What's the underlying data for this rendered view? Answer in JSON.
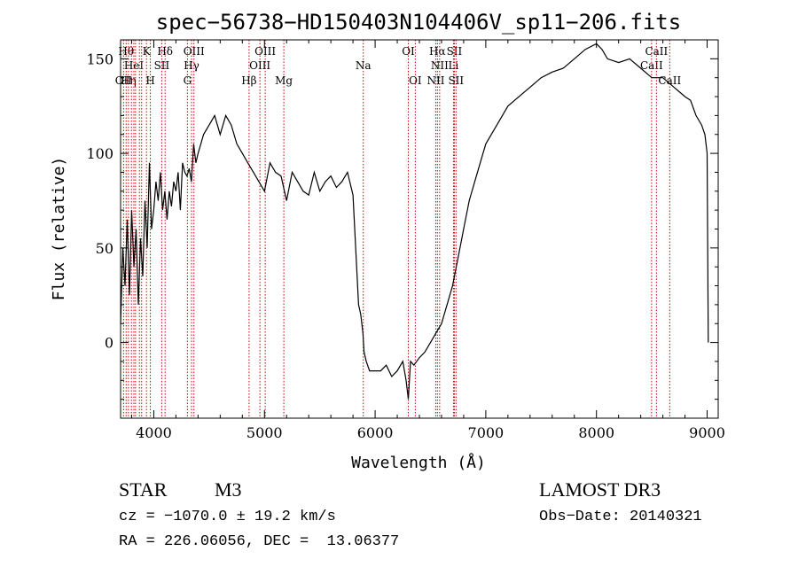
{
  "chart_data": {
    "type": "line",
    "title": "spec−56738−HD150403N104406V_sp11−206.fits",
    "xlabel": "Wavelength (Å)",
    "ylabel": "Flux (relative)",
    "xlim": [
      3700,
      9100
    ],
    "ylim": [
      -40,
      160
    ],
    "x_ticks": [
      4000,
      5000,
      6000,
      7000,
      8000,
      9000
    ],
    "y_ticks": [
      0,
      50,
      100,
      150
    ],
    "grid": false,
    "line_color": "#000000",
    "marker_color": "#cc0000",
    "series": [
      {
        "x": [
          3700,
          3720,
          3740,
          3760,
          3780,
          3800,
          3820,
          3840,
          3860,
          3880,
          3900,
          3920,
          3940,
          3960,
          3980,
          4000,
          4020,
          4040,
          4060,
          4080,
          4100,
          4120,
          4140,
          4160,
          4180,
          4200,
          4220,
          4240,
          4260,
          4280,
          4300,
          4320,
          4340,
          4360,
          4380,
          4400,
          4450,
          4500,
          4550,
          4600,
          4650,
          4700,
          4750,
          4800,
          4850,
          4900,
          4950,
          5000,
          5050,
          5100,
          5150,
          5200,
          5250,
          5300,
          5350,
          5400,
          5450,
          5500,
          5550,
          5600,
          5650,
          5700,
          5750,
          5800,
          5850,
          5870,
          5890,
          5900,
          5920,
          5950,
          6000,
          6050,
          6100,
          6150,
          6200,
          6250,
          6280,
          6300,
          6320,
          6350,
          6400,
          6450,
          6500,
          6550,
          6600,
          6650,
          6700,
          6750,
          6800,
          6850,
          6900,
          6950,
          7000,
          7050,
          7100,
          7150,
          7200,
          7300,
          7400,
          7500,
          7600,
          7700,
          7800,
          7900,
          8000,
          8050,
          8100,
          8200,
          8300,
          8400,
          8500,
          8600,
          8700,
          8800,
          8850,
          8900,
          8950,
          8980,
          9000,
          9010
        ],
        "y": [
          10,
          50,
          30,
          65,
          25,
          70,
          40,
          60,
          20,
          55,
          35,
          75,
          50,
          95,
          60,
          70,
          85,
          75,
          90,
          70,
          80,
          65,
          80,
          72,
          85,
          80,
          90,
          70,
          95,
          90,
          88,
          92,
          85,
          105,
          95,
          100,
          110,
          115,
          120,
          110,
          120,
          115,
          105,
          100,
          95,
          90,
          85,
          80,
          95,
          90,
          88,
          75,
          90,
          85,
          80,
          78,
          90,
          80,
          85,
          88,
          82,
          85,
          90,
          78,
          20,
          15,
          5,
          -5,
          -10,
          -15,
          -15,
          -15,
          -12,
          -18,
          -15,
          -10,
          -20,
          -30,
          -10,
          -12,
          -8,
          -5,
          0,
          5,
          10,
          20,
          30,
          45,
          60,
          75,
          85,
          95,
          105,
          110,
          115,
          120,
          125,
          130,
          135,
          140,
          143,
          145,
          150,
          155,
          158,
          155,
          150,
          148,
          150,
          145,
          140,
          140,
          135,
          130,
          128,
          120,
          115,
          110,
          100,
          0
        ]
      }
    ],
    "line_markers": [
      {
        "wl": 3727,
        "label": "OII",
        "row": 3
      },
      {
        "wl": 3750,
        "label": "Hθ",
        "row": 1
      },
      {
        "wl": 3771,
        "label": "Hη",
        "row": 3
      },
      {
        "wl": 3798,
        "label": "",
        "row": 0
      },
      {
        "wl": 3820,
        "label": "HeI",
        "row": 2
      },
      {
        "wl": 3835,
        "label": "",
        "row": 0
      },
      {
        "wl": 3870,
        "label": "",
        "row": 0
      },
      {
        "wl": 3890,
        "label": "",
        "row": 0
      },
      {
        "wl": 3934,
        "label": "K",
        "row": 1
      },
      {
        "wl": 3969,
        "label": "H",
        "row": 3
      },
      {
        "wl": 4072,
        "label": "SII",
        "row": 2
      },
      {
        "wl": 4102,
        "label": "Hδ",
        "row": 1
      },
      {
        "wl": 4304,
        "label": "G",
        "row": 3
      },
      {
        "wl": 4341,
        "label": "Hγ",
        "row": 2
      },
      {
        "wl": 4363,
        "label": "OIII",
        "row": 1
      },
      {
        "wl": 4861,
        "label": "Hβ",
        "row": 3
      },
      {
        "wl": 4959,
        "label": "OIII",
        "row": 2
      },
      {
        "wl": 5007,
        "label": "OIII",
        "row": 1
      },
      {
        "wl": 5175,
        "label": "Mg",
        "row": 3
      },
      {
        "wl": 5893,
        "label": "Na",
        "row": 2
      },
      {
        "wl": 6300,
        "label": "OI",
        "row": 1
      },
      {
        "wl": 6363,
        "label": "OI",
        "row": 3
      },
      {
        "wl": 6548,
        "label": "NII",
        "row": 3
      },
      {
        "wl": 6563,
        "label": "Hα",
        "row": 1
      },
      {
        "wl": 6583,
        "label": "NII",
        "row": 2
      },
      {
        "wl": 6708,
        "label": "Li",
        "row": 2
      },
      {
        "wl": 6716,
        "label": "SII",
        "row": 1
      },
      {
        "wl": 6731,
        "label": "SII",
        "row": 3
      },
      {
        "wl": 8498,
        "label": "CaII",
        "row": 2
      },
      {
        "wl": 8542,
        "label": "CaII",
        "row": 1
      },
      {
        "wl": 8662,
        "label": "CaII",
        "row": 3
      }
    ]
  },
  "info": {
    "class_label": "STAR",
    "subclass_label": "M3",
    "survey_label": "LAMOST DR3",
    "cz_text": "cz = −1070.0 ± 19.2 km/s",
    "obs_date_text": "Obs−Date: 20140321",
    "radec_text": "RA = 226.06056, DEC =  13.06377"
  }
}
